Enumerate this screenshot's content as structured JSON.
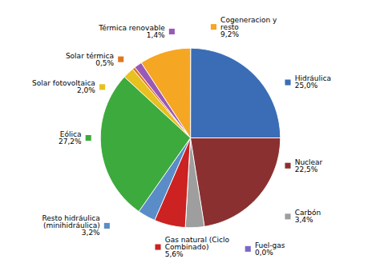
{
  "chart_data": {
    "type": "pie",
    "categories": [
      "Hidráulica",
      "Nuclear",
      "Carbón",
      "Fuel-gas",
      "Gas natural (Ciclo\nCombinado)",
      "Resto hidráulica\n(minihidráulica)",
      "Eólica",
      "Solar fotovoltaica",
      "Solar térmica",
      "Térmica renovable",
      "Cogeneracion y\nresto"
    ],
    "values": [
      25.0,
      22.5,
      3.4,
      0.0,
      5.6,
      3.2,
      27.2,
      2.0,
      0.5,
      1.4,
      9.2
    ],
    "value_labels": [
      "25,0%",
      "22,5%",
      "3,4%",
      "0,0%",
      "5,6%",
      "3,2%",
      "27,2%",
      "2,0%",
      "0,5%",
      "1,4%",
      "9,2%"
    ],
    "colors": [
      "#3A6DB5",
      "#8B3030",
      "#9E9E9E",
      "#7B68C8",
      "#CC2222",
      "#5A8DC8",
      "#3DAA3D",
      "#E8C020",
      "#E07820",
      "#9B59B6",
      "#F5A623"
    ],
    "data_labels": true
  }
}
